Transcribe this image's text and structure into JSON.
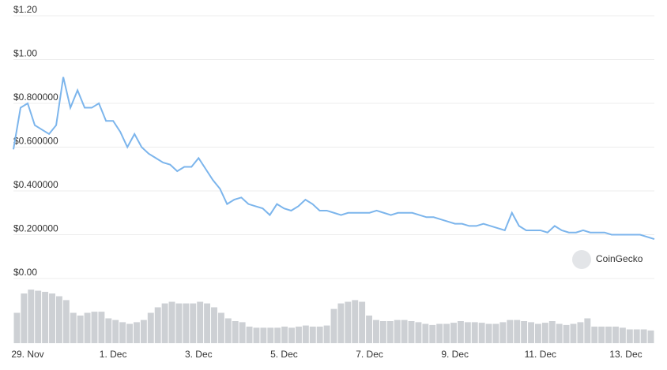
{
  "chart_data": [
    {
      "type": "line",
      "color": "#7cb5ec",
      "grid": true,
      "watermark": "CoinGecko",
      "categories": [
        null,
        null,
        "29. Nov",
        null,
        null,
        null,
        null,
        null,
        null,
        null,
        null,
        null,
        null,
        null,
        "1. Dec",
        null,
        null,
        null,
        null,
        null,
        null,
        null,
        null,
        null,
        null,
        null,
        "3. Dec",
        null,
        null,
        null,
        null,
        null,
        null,
        null,
        null,
        null,
        null,
        null,
        "5. Dec",
        null,
        null,
        null,
        null,
        null,
        null,
        null,
        null,
        null,
        null,
        null,
        "7. Dec",
        null,
        null,
        null,
        null,
        null,
        null,
        null,
        null,
        null,
        null,
        null,
        "9. Dec",
        null,
        null,
        null,
        null,
        null,
        null,
        null,
        null,
        null,
        null,
        null,
        "11. Dec",
        null,
        null,
        null,
        null,
        null,
        null,
        null,
        null,
        null,
        null,
        null,
        "13. Dec",
        null,
        null,
        null,
        null
      ],
      "values": [
        0.59,
        0.78,
        0.8,
        0.7,
        0.68,
        0.66,
        0.7,
        0.92,
        0.78,
        0.86,
        0.78,
        0.78,
        0.8,
        0.72,
        0.72,
        0.67,
        0.6,
        0.66,
        0.6,
        0.57,
        0.55,
        0.53,
        0.52,
        0.49,
        0.51,
        0.51,
        0.55,
        0.5,
        0.45,
        0.41,
        0.34,
        0.36,
        0.37,
        0.34,
        0.33,
        0.32,
        0.29,
        0.34,
        0.32,
        0.31,
        0.33,
        0.36,
        0.34,
        0.31,
        0.31,
        0.3,
        0.29,
        0.3,
        0.3,
        0.3,
        0.3,
        0.31,
        0.3,
        0.29,
        0.3,
        0.3,
        0.3,
        0.29,
        0.28,
        0.28,
        0.27,
        0.26,
        0.25,
        0.25,
        0.24,
        0.24,
        0.25,
        0.24,
        0.23,
        0.22,
        0.3,
        0.24,
        0.22,
        0.22,
        0.22,
        0.21,
        0.24,
        0.22,
        0.21,
        0.21,
        0.22,
        0.21,
        0.21,
        0.21,
        0.2,
        0.2,
        0.2,
        0.2,
        0.2,
        0.19,
        0.18
      ],
      "ylim": [
        0,
        1.2
      ],
      "yticks": [
        {
          "value": 0,
          "label": "$0.00"
        },
        {
          "value": 0.2,
          "label": "$0.200000"
        },
        {
          "value": 0.4,
          "label": "$0.400000"
        },
        {
          "value": 0.6,
          "label": "$0.600000"
        },
        {
          "value": 0.8,
          "label": "$0.800000"
        },
        {
          "value": 1,
          "label": "$1.00"
        },
        {
          "value": 1.2,
          "label": "$1.20"
        }
      ]
    },
    {
      "type": "bar",
      "color": "#cdd0d4",
      "ylim": [
        0,
        1
      ],
      "values": [
        0.55,
        0.9,
        0.97,
        0.95,
        0.93,
        0.9,
        0.85,
        0.78,
        0.55,
        0.5,
        0.55,
        0.57,
        0.57,
        0.45,
        0.42,
        0.38,
        0.35,
        0.38,
        0.42,
        0.55,
        0.65,
        0.72,
        0.75,
        0.72,
        0.72,
        0.72,
        0.75,
        0.72,
        0.65,
        0.55,
        0.45,
        0.4,
        0.38,
        0.3,
        0.28,
        0.28,
        0.28,
        0.28,
        0.3,
        0.28,
        0.3,
        0.32,
        0.3,
        0.3,
        0.32,
        0.62,
        0.72,
        0.75,
        0.78,
        0.75,
        0.5,
        0.42,
        0.4,
        0.4,
        0.42,
        0.42,
        0.4,
        0.38,
        0.35,
        0.33,
        0.35,
        0.35,
        0.37,
        0.4,
        0.38,
        0.38,
        0.37,
        0.35,
        0.35,
        0.38,
        0.42,
        0.42,
        0.4,
        0.38,
        0.35,
        0.37,
        0.4,
        0.35,
        0.33,
        0.35,
        0.38,
        0.45,
        0.3,
        0.3,
        0.3,
        0.3,
        0.28,
        0.25,
        0.25,
        0.25,
        0.23
      ]
    }
  ]
}
